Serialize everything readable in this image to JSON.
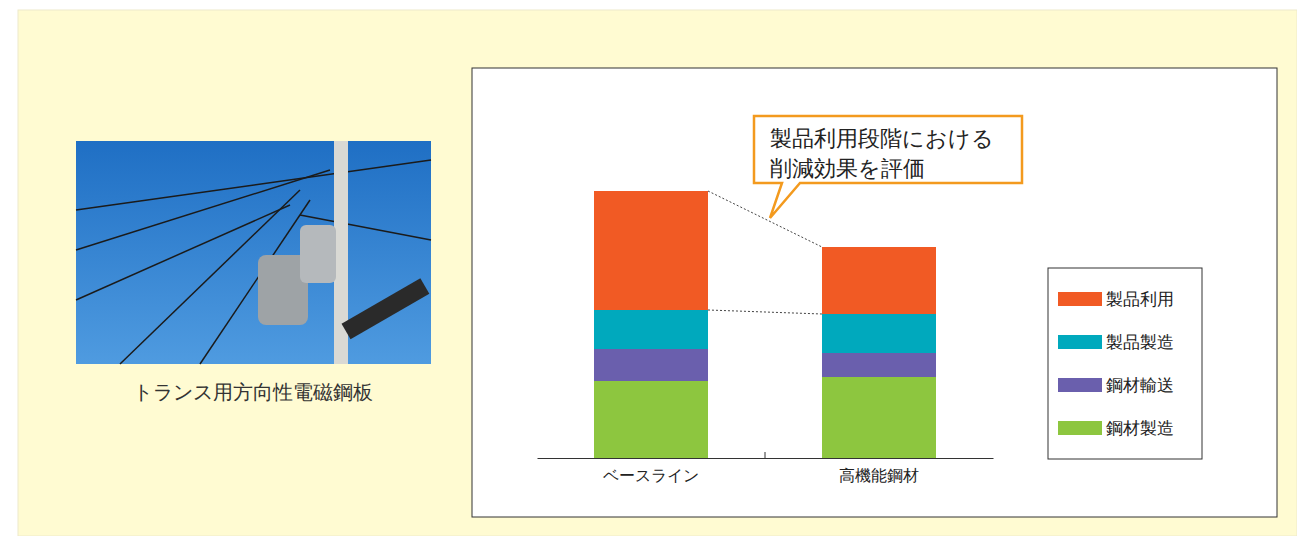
{
  "chart_data": {
    "type": "bar",
    "stacked": true,
    "tick_labels": "x",
    "legend": "right",
    "caption": "トランス用方向性電磁鋼板",
    "annotation": [
      "製品利用段階における",
      "削減効果を評価"
    ],
    "categories": [
      "ベースライン",
      "高機能鋼材"
    ],
    "ylim": [
      0,
      390
    ],
    "series": [
      {
        "name": "鋼材製造",
        "color": "#8dc63f",
        "values": [
          77,
          81
        ]
      },
      {
        "name": "鋼材輸送",
        "color": "#6a5fad",
        "values": [
          32,
          24
        ]
      },
      {
        "name": "製品製造",
        "color": "#00a9bd",
        "values": [
          39,
          39
        ]
      },
      {
        "name": "製品利用",
        "color": "#f15a24",
        "values": [
          119,
          67
        ]
      }
    ]
  }
}
